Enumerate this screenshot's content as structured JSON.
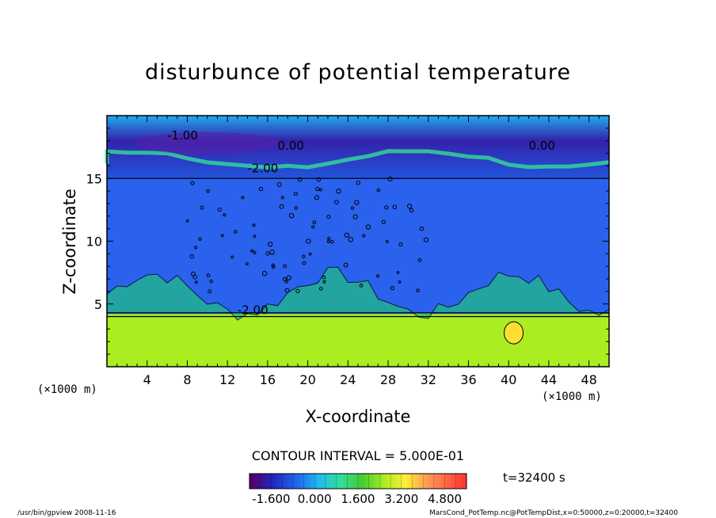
{
  "chart_data": {
    "type": "heatmap",
    "title": "disturbunce of potential temperature",
    "xlabel": "X-coordinate",
    "ylabel": "Z-coordinate",
    "x_unit": "(×1000 m)",
    "y_unit": "(×1000 m)",
    "xlim": [
      0,
      50
    ],
    "ylim": [
      0,
      20
    ],
    "x_ticks": [
      4,
      8,
      12,
      16,
      20,
      24,
      28,
      32,
      36,
      40,
      44,
      48
    ],
    "y_ticks": [
      5,
      10,
      15
    ],
    "contour_labels": [
      "-1.00",
      "0.00",
      "-2.00",
      "0.00",
      "-2.00"
    ],
    "contour_interval_text": "CONTOUR INTERVAL = 5.000E-01",
    "colorbar": {
      "min": -2.4,
      "max": 5.6,
      "tick_labels": [
        "-1.600",
        "0.000",
        "1.600",
        "3.200",
        "4.800"
      ],
      "tick_values": [
        -1.6,
        0.0,
        1.6,
        3.2,
        4.8
      ]
    },
    "time_label": "t=32400 s",
    "layers": [
      {
        "z_from": 0,
        "z_to": 4.2,
        "value": 3.4,
        "description": "lower layer, yellow-green"
      },
      {
        "z_from": 4.2,
        "z_to": 15.0,
        "value": -0.3,
        "description": "middle layer, blue"
      },
      {
        "z_from": 15.0,
        "z_to": 20,
        "value": 0.5,
        "description": "upper layer, cyan/dark blue"
      }
    ]
  },
  "footer": {
    "left": "/usr/bin/gpview   2008-11-16",
    "right": "MarsCond_PotTemp.nc@PotTempDist,x=0:50000,z=0:20000,t=32400"
  },
  "colors": {
    "lower": "#aaee22",
    "middle": "#2a62ee",
    "upper": "#22ccee",
    "top_dark": "#5522aa",
    "warm_blob": "#ffdd33"
  }
}
